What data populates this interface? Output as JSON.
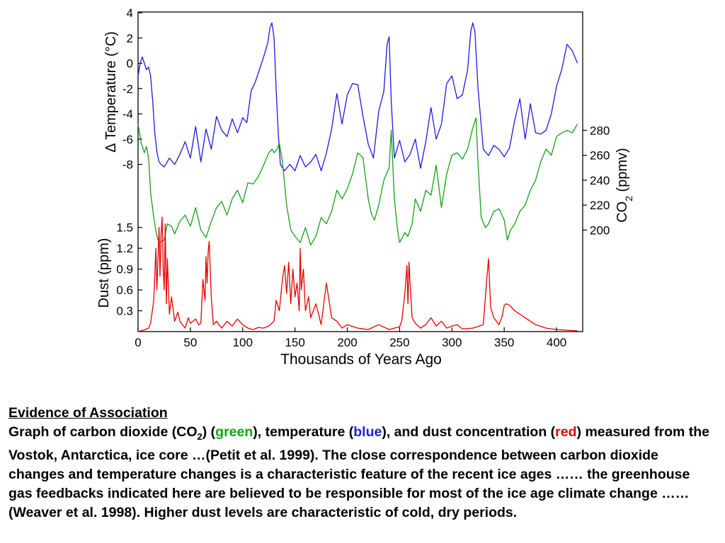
{
  "chart_data": {
    "type": "line",
    "xlabel": "Thousands of Years Ago",
    "xticks": [
      "0",
      "50",
      "100",
      "150",
      "200",
      "250",
      "300",
      "350",
      "400"
    ],
    "xlim": [
      0,
      425
    ],
    "panels": [
      {
        "id": "temperature",
        "ylabel": "Δ Temperature (°C)",
        "yticks": [
          "4",
          "2",
          "0",
          "-2",
          "-4",
          "-6",
          "-8"
        ],
        "ylim": [
          -9.2,
          4
        ],
        "axis_side": "left",
        "series": [
          {
            "color": "#1a1ae6",
            "x": [
              0,
              2,
              4,
              6,
              8,
              10,
              12,
              14,
              16,
              18,
              20,
              22,
              25,
              30,
              35,
              40,
              45,
              50,
              55,
              60,
              65,
              70,
              75,
              80,
              85,
              90,
              95,
              100,
              104,
              108,
              112,
              116,
              120,
              124,
              126,
              128,
              130,
              132,
              134,
              136,
              140,
              145,
              150,
              155,
              160,
              165,
              170,
              175,
              180,
              185,
              190,
              195,
              200,
              205,
              210,
              215,
              220,
              225,
              230,
              235,
              238,
              240,
              242,
              245,
              250,
              255,
              260,
              265,
              270,
              275,
              280,
              285,
              290,
              295,
              300,
              305,
              310,
              315,
              318,
              320,
              322,
              325,
              330,
              335,
              340,
              345,
              350,
              355,
              360,
              365,
              370,
              375,
              380,
              385,
              390,
              395,
              400,
              405,
              410,
              415,
              420
            ],
            "y": [
              -1,
              0,
              0.5,
              0,
              -0.5,
              -0.3,
              -1,
              -3,
              -5.5,
              -7,
              -7.8,
              -8,
              -8.2,
              -7.5,
              -8,
              -7.2,
              -6.2,
              -7.5,
              -5,
              -7.8,
              -5.2,
              -6.8,
              -4.2,
              -5.3,
              -5.8,
              -4.4,
              -5.5,
              -4.3,
              -4.7,
              -2.2,
              -1.5,
              -0.5,
              0.5,
              1.6,
              2.8,
              3.2,
              2,
              -2,
              -5.5,
              -8,
              -8.5,
              -8,
              -8.5,
              -7.3,
              -8.2,
              -7.8,
              -7.2,
              -8.5,
              -7.1,
              -5.2,
              -2.4,
              -4.8,
              -2.5,
              -1.6,
              -1.7,
              -4.2,
              -6.4,
              -7.5,
              -3.8,
              -2.2,
              1.5,
              2.1,
              -3,
              -7.5,
              -6.1,
              -7.8,
              -7.2,
              -6,
              -8.3,
              -6.2,
              -3.5,
              -6,
              -4.8,
              -1.6,
              -1,
              -2.8,
              -2.5,
              -0.5,
              2.5,
              3.2,
              2.5,
              -2,
              -6.8,
              -7.3,
              -6.5,
              -6.8,
              -7.4,
              -6.7,
              -4.5,
              -2.8,
              -6,
              -3.2,
              -5.5,
              -5.6,
              -5.3,
              -4,
              -1.8,
              -0.5,
              1.5,
              1,
              0
            ]
          }
        ]
      },
      {
        "id": "co2",
        "ylabel": "CO2 (ppmv)",
        "yticks": [
          "280",
          "260",
          "240",
          "220",
          "200"
        ],
        "ylim": [
          173,
          287
        ],
        "axis_side": "right",
        "series": [
          {
            "color": "#16a016",
            "x": [
              0,
              3,
              6,
              8,
              10,
              12,
              15,
              18,
              20,
              25,
              28,
              32,
              35,
              40,
              45,
              50,
              55,
              60,
              65,
              70,
              75,
              80,
              85,
              90,
              95,
              100,
              105,
              110,
              115,
              120,
              125,
              128,
              130,
              133,
              135,
              138,
              142,
              146,
              150,
              155,
              160,
              165,
              170,
              175,
              180,
              185,
              190,
              195,
              200,
              205,
              210,
              215,
              220,
              223,
              226,
              230,
              235,
              240,
              242,
              245,
              248,
              250,
              252,
              255,
              258,
              262,
              265,
              270,
              275,
              280,
              285,
              290,
              295,
              300,
              305,
              310,
              315,
              320,
              323,
              325,
              328,
              332,
              335,
              340,
              345,
              350,
              353,
              356,
              360,
              365,
              370,
              375,
              380,
              385,
              390,
              395,
              400,
              405,
              410,
              415,
              420
            ],
            "y": [
              285,
              270,
              262,
              267,
              258,
              230,
              210,
              195,
              190,
              192,
              205,
              203,
              197,
              207,
              212,
              203,
              218,
              200,
              194,
              207,
              218,
              223,
              212,
              225,
              232,
              222,
              238,
              237,
              243,
              252,
              262,
              265,
              262,
              265,
              270,
              255,
              220,
              200,
              195,
              190,
              202,
              188,
              195,
              210,
              205,
              215,
              232,
              225,
              233,
              245,
              262,
              258,
              225,
              213,
              208,
              220,
              240,
              250,
              280,
              225,
              200,
              190,
              193,
              198,
              195,
              205,
              225,
              215,
              232,
              228,
              252,
              218,
              245,
              260,
              262,
              257,
              265,
              282,
              290,
              253,
              210,
              202,
              205,
              215,
              217,
              208,
              192,
              200,
              205,
              215,
              220,
              232,
              240,
              255,
              265,
              260,
              275,
              278,
              280,
              278,
              285
            ]
          }
        ]
      },
      {
        "id": "dust",
        "ylabel": "Dust (ppm)",
        "yticks": [
          "1.5",
          "1.2",
          "0.9",
          "0.6",
          "0.3"
        ],
        "ylim": [
          0,
          1.68
        ],
        "axis_side": "left",
        "series": [
          {
            "color": "#e80000",
            "x": [
              0,
              5,
              10,
              12,
              15,
              17,
              18,
              20,
              21,
              22,
              23,
              24,
              25,
              26,
              27,
              28,
              30,
              32,
              35,
              38,
              40,
              45,
              48,
              50,
              55,
              58,
              60,
              62,
              64,
              65,
              66,
              67,
              68,
              70,
              72,
              75,
              80,
              85,
              90,
              95,
              100,
              105,
              110,
              115,
              120,
              125,
              130,
              132,
              135,
              138,
              140,
              142,
              144,
              146,
              148,
              150,
              152,
              154,
              155,
              156,
              158,
              160,
              163,
              165,
              170,
              175,
              180,
              185,
              190,
              195,
              200,
              210,
              220,
              230,
              240,
              250,
              252,
              255,
              256,
              257,
              258,
              259,
              260,
              262,
              265,
              270,
              275,
              280,
              285,
              290,
              295,
              300,
              305,
              310,
              320,
              330,
              333,
              335,
              337,
              340,
              345,
              348,
              350,
              352,
              355,
              360,
              370,
              380,
              390,
              400,
              410,
              420
            ],
            "y": [
              0,
              0.02,
              0.05,
              0.12,
              0.45,
              1.2,
              0.6,
              1.5,
              0.8,
              1.4,
              1.65,
              0.9,
              0.6,
              1.55,
              0.4,
              1.05,
              0.25,
              0.5,
              0.15,
              0.28,
              0.15,
              0.05,
              0.2,
              0.12,
              0.18,
              0.1,
              0.12,
              0.75,
              0.45,
              1.08,
              0.7,
              1.15,
              1.3,
              0.5,
              0.1,
              0.15,
              0.05,
              0.15,
              0.08,
              0.18,
              0.1,
              0.05,
              0.03,
              0.06,
              0.05,
              0.08,
              0.15,
              0.45,
              0.3,
              0.75,
              0.95,
              0.55,
              1.0,
              0.4,
              0.9,
              0.5,
              0.7,
              0.3,
              1.2,
              0.6,
              0.9,
              0.3,
              0.5,
              0.2,
              0.4,
              0.1,
              0.7,
              0.2,
              0.15,
              0.05,
              0.1,
              0.05,
              0.03,
              0.1,
              0.03,
              0.07,
              0.15,
              0.55,
              0.75,
              0.95,
              0.4,
              1.0,
              0.7,
              0.2,
              0.12,
              0.05,
              0.1,
              0.2,
              0.08,
              0.15,
              0.05,
              0.08,
              0.1,
              0.04,
              0.05,
              0.1,
              0.7,
              1.05,
              0.35,
              0.2,
              0.1,
              0.22,
              0.38,
              0.4,
              0.38,
              0.3,
              0.2,
              0.1,
              0.05,
              0.03,
              0.02,
              0.01
            ]
          }
        ]
      }
    ]
  },
  "caption": {
    "heading": "Evidence of Association",
    "part1": "Graph of carbon dioxide (CO",
    "sub2": "2",
    "part2": ") (",
    "green_word": "green",
    "part3": "), temperature (",
    "blue_word": "blue",
    "part4": "), and dust concentration (",
    "red_word": "red",
    "part5": ") measured from the Vostok, Antarctica, ice core …(Petit et al. 1999). The close correspondence between carbon dioxide changes and temperature changes is a characteristic feature of the recent  ice ages ……  the greenhouse gas feedbacks indicated here are believed to be responsible for most of the ice age climate change …… (Weaver et al. 1998). Higher dust levels are characteristic of cold, dry periods."
  },
  "colors": {
    "temperature": "#1a1ae6",
    "co2": "#16a016",
    "dust": "#e80000"
  }
}
